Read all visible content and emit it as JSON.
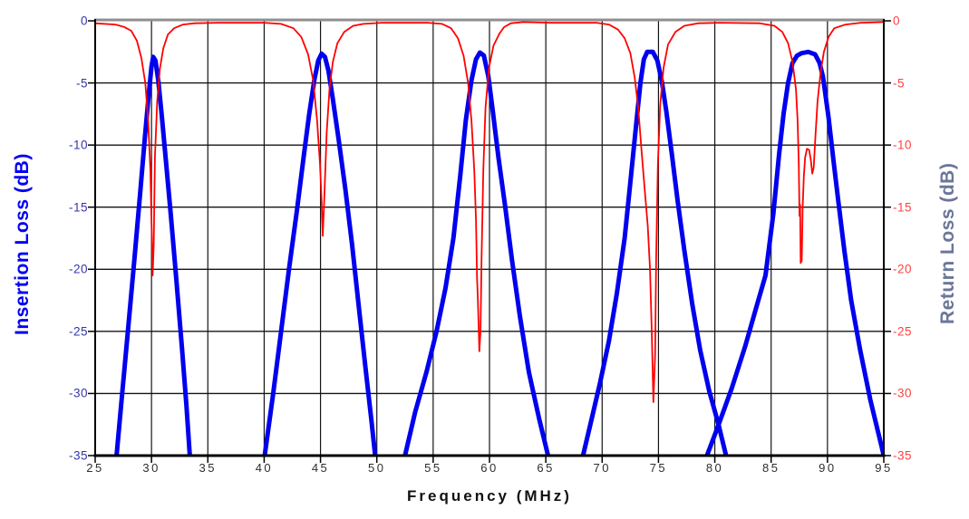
{
  "chart_data": {
    "type": "line",
    "title": "",
    "xlabel": "Frequency (MHz)",
    "ylabel_left": "Insertion Loss (dB)",
    "ylabel_right": "Return Loss (dB)",
    "x_range": [
      25,
      95
    ],
    "x_ticks": [
      25,
      30,
      35,
      40,
      45,
      50,
      55,
      60,
      65,
      70,
      75,
      80,
      85,
      90,
      95
    ],
    "y_range": [
      -35,
      0
    ],
    "y_ticks": [
      0,
      -5,
      -10,
      -15,
      -20,
      -25,
      -30,
      -35
    ],
    "grid": true,
    "legend_position": "none",
    "colors": {
      "insertion_loss": "#0000ee",
      "return_loss": "#ff0000",
      "left_tick_labels": "#3535a8",
      "right_tick_labels": "#ff4040",
      "left_title": "#0000f5",
      "right_title": "#6b7699",
      "x_labels": "#2e2e2e",
      "x_title": "#111111",
      "grid": "#141414",
      "axis_border": "#000000",
      "top_border": "#8f8f8f",
      "background": "#ffffff"
    },
    "passbands": [
      {
        "center_mhz": 30.1,
        "insertion_loss_peak_db": -2.9,
        "return_loss_min_db": -20.5
      },
      {
        "center_mhz": 45.2,
        "insertion_loss_peak_db": -2.7,
        "return_loss_min_db": -17.3
      },
      {
        "center_mhz": 59.2,
        "insertion_loss_peak_db": -2.6,
        "return_loss_min_db": -26.6
      },
      {
        "center_mhz": 74.2,
        "insertion_loss_peak_db": -2.5,
        "return_loss_min_db": -30.7
      },
      {
        "center_mhz": 88.0,
        "insertion_loss_peak_db": -2.5,
        "return_loss_min_db": -19.5
      }
    ],
    "series": [
      {
        "name": "Insertion Loss",
        "axis": "left",
        "color": "#0000ee",
        "stroke_width": 5,
        "segments": [
          [
            [
              26.9,
              -35
            ],
            [
              27.4,
              -30
            ],
            [
              27.95,
              -24.5
            ],
            [
              28.5,
              -19
            ],
            [
              29.0,
              -13.8
            ],
            [
              29.4,
              -9.5
            ],
            [
              29.75,
              -6
            ],
            [
              30.0,
              -3.7
            ],
            [
              30.15,
              -2.9
            ],
            [
              30.35,
              -3.2
            ],
            [
              30.6,
              -4.8
            ],
            [
              30.9,
              -7.5
            ],
            [
              31.25,
              -11
            ],
            [
              31.7,
              -15.5
            ],
            [
              32.2,
              -20.8
            ],
            [
              32.7,
              -26.3
            ],
            [
              33.1,
              -31
            ],
            [
              33.4,
              -35
            ]
          ],
          [
            [
              40.05,
              -35
            ],
            [
              40.8,
              -30
            ],
            [
              41.5,
              -25
            ],
            [
              42.2,
              -20
            ],
            [
              42.9,
              -15.3
            ],
            [
              43.5,
              -11
            ],
            [
              44.0,
              -7.5
            ],
            [
              44.45,
              -4.8
            ],
            [
              44.8,
              -3.2
            ],
            [
              45.1,
              -2.65
            ],
            [
              45.4,
              -2.9
            ],
            [
              45.7,
              -4
            ],
            [
              46.1,
              -6.3
            ],
            [
              46.6,
              -9.5
            ],
            [
              47.2,
              -13.5
            ],
            [
              47.8,
              -18
            ],
            [
              48.4,
              -23
            ],
            [
              49.0,
              -28
            ],
            [
              49.5,
              -32
            ],
            [
              49.85,
              -35
            ]
          ],
          [
            [
              52.5,
              -35
            ],
            [
              53.4,
              -31.5
            ],
            [
              54.4,
              -28.3
            ],
            [
              55.3,
              -25
            ],
            [
              56.1,
              -21.5
            ],
            [
              56.8,
              -17.5
            ],
            [
              57.4,
              -12.5
            ],
            [
              57.9,
              -8
            ],
            [
              58.4,
              -4.8
            ],
            [
              58.8,
              -3.1
            ],
            [
              59.15,
              -2.55
            ],
            [
              59.5,
              -2.8
            ],
            [
              59.9,
              -4.5
            ],
            [
              60.3,
              -7.3
            ],
            [
              60.8,
              -11
            ],
            [
              61.4,
              -15
            ],
            [
              62.0,
              -19.3
            ],
            [
              62.7,
              -23.8
            ],
            [
              63.5,
              -28.3
            ],
            [
              64.4,
              -32
            ],
            [
              65.2,
              -35
            ]
          ],
          [
            [
              68.3,
              -35
            ],
            [
              69.0,
              -32.3
            ],
            [
              69.8,
              -29.2
            ],
            [
              70.6,
              -25.8
            ],
            [
              71.3,
              -22
            ],
            [
              72.0,
              -17.5
            ],
            [
              72.5,
              -13
            ],
            [
              73.0,
              -8.5
            ],
            [
              73.4,
              -5
            ],
            [
              73.7,
              -3.1
            ],
            [
              74.0,
              -2.5
            ],
            [
              74.5,
              -2.5
            ],
            [
              74.9,
              -3.2
            ],
            [
              75.3,
              -4.9
            ],
            [
              75.7,
              -7.3
            ],
            [
              76.2,
              -10.8
            ],
            [
              76.7,
              -14.5
            ],
            [
              77.3,
              -18.5
            ],
            [
              78.0,
              -22.8
            ],
            [
              78.7,
              -26.5
            ],
            [
              79.5,
              -29.8
            ],
            [
              80.3,
              -32.4
            ],
            [
              81.0,
              -35
            ]
          ],
          [
            [
              79.3,
              -35
            ],
            [
              80.3,
              -32.6
            ],
            [
              81.5,
              -29.6
            ],
            [
              82.7,
              -26.2
            ],
            [
              83.7,
              -23
            ],
            [
              84.5,
              -20.5
            ],
            [
              85.2,
              -15.5
            ],
            [
              85.7,
              -10.8
            ],
            [
              86.1,
              -7.5
            ],
            [
              86.5,
              -5
            ],
            [
              86.9,
              -3.4
            ],
            [
              87.3,
              -2.8
            ],
            [
              87.7,
              -2.6
            ],
            [
              88.3,
              -2.5
            ],
            [
              88.9,
              -2.7
            ],
            [
              89.3,
              -3.4
            ],
            [
              89.6,
              -4.5
            ],
            [
              90.1,
              -7.8
            ],
            [
              90.5,
              -11
            ],
            [
              91.0,
              -14.8
            ],
            [
              91.5,
              -18.5
            ],
            [
              92.1,
              -22.5
            ],
            [
              92.9,
              -26.5
            ],
            [
              93.8,
              -30.5
            ],
            [
              95.0,
              -35
            ]
          ]
        ]
      },
      {
        "name": "Return Loss",
        "axis": "right",
        "color": "#ff0000",
        "stroke_width": 1.8,
        "segments": [
          [
            [
              25,
              -0.2
            ],
            [
              26.8,
              -0.3
            ],
            [
              27.6,
              -0.5
            ],
            [
              28.2,
              -0.8
            ],
            [
              28.7,
              -1.6
            ],
            [
              29.1,
              -3
            ],
            [
              29.45,
              -5
            ],
            [
              29.7,
              -8
            ],
            [
              29.9,
              -12
            ],
            [
              30.0,
              -16
            ],
            [
              30.1,
              -20.5
            ],
            [
              30.2,
              -18
            ],
            [
              30.3,
              -11
            ],
            [
              30.5,
              -6.5
            ],
            [
              30.75,
              -3.8
            ],
            [
              31.05,
              -2.2
            ],
            [
              31.45,
              -1.1
            ],
            [
              32.0,
              -0.6
            ],
            [
              32.8,
              -0.3
            ],
            [
              33.8,
              -0.2
            ],
            [
              36,
              -0.15
            ],
            [
              40,
              -0.15
            ],
            [
              41.5,
              -0.25
            ],
            [
              42.6,
              -0.6
            ],
            [
              43.3,
              -1.3
            ],
            [
              43.9,
              -2.7
            ],
            [
              44.35,
              -4.8
            ],
            [
              44.7,
              -8
            ],
            [
              44.95,
              -11.5
            ],
            [
              45.1,
              -14.5
            ],
            [
              45.2,
              -17.3
            ],
            [
              45.35,
              -14
            ],
            [
              45.55,
              -9
            ],
            [
              45.8,
              -5.5
            ],
            [
              46.1,
              -3.3
            ],
            [
              46.5,
              -1.8
            ],
            [
              47.1,
              -0.9
            ],
            [
              47.9,
              -0.4
            ],
            [
              48.8,
              -0.25
            ],
            [
              50.5,
              -0.15
            ],
            [
              54.5,
              -0.15
            ],
            [
              55.8,
              -0.25
            ],
            [
              56.6,
              -0.6
            ],
            [
              57.2,
              -1.4
            ],
            [
              57.7,
              -2.8
            ],
            [
              58.1,
              -5
            ],
            [
              58.4,
              -8
            ],
            [
              58.65,
              -12
            ],
            [
              58.8,
              -16
            ],
            [
              58.9,
              -20.8
            ],
            [
              58.95,
              -22
            ],
            [
              59.1,
              -26.6
            ],
            [
              59.2,
              -25
            ],
            [
              59.3,
              -19
            ],
            [
              59.45,
              -12
            ],
            [
              59.65,
              -7
            ],
            [
              59.95,
              -3.8
            ],
            [
              60.35,
              -2
            ],
            [
              60.9,
              -1
            ],
            [
              61.3,
              -0.5
            ],
            [
              61.9,
              -0.2
            ],
            [
              63,
              -0.1
            ],
            [
              65.5,
              -0.15
            ],
            [
              69.5,
              -0.15
            ],
            [
              70.6,
              -0.3
            ],
            [
              71.4,
              -0.7
            ],
            [
              72.0,
              -1.4
            ],
            [
              72.5,
              -2.6
            ],
            [
              72.9,
              -4.6
            ],
            [
              73.2,
              -7
            ],
            [
              73.5,
              -10.5
            ],
            [
              73.8,
              -13.8
            ],
            [
              74.05,
              -16.5
            ],
            [
              74.25,
              -20
            ],
            [
              74.4,
              -25
            ],
            [
              74.55,
              -30.7
            ],
            [
              74.7,
              -27
            ],
            [
              74.8,
              -19
            ],
            [
              74.95,
              -11.5
            ],
            [
              75.15,
              -6.8
            ],
            [
              75.45,
              -3.8
            ],
            [
              75.85,
              -1.9
            ],
            [
              76.5,
              -0.9
            ],
            [
              77.3,
              -0.4
            ],
            [
              78.5,
              -0.2
            ],
            [
              80.5,
              -0.15
            ],
            [
              84.0,
              -0.2
            ],
            [
              85.3,
              -0.4
            ],
            [
              86.0,
              -0.9
            ],
            [
              86.5,
              -1.8
            ],
            [
              86.9,
              -3.3
            ],
            [
              87.2,
              -5.5
            ],
            [
              87.35,
              -8
            ],
            [
              87.45,
              -11.5
            ],
            [
              87.52,
              -15.7
            ],
            [
              87.57,
              -14.8
            ],
            [
              87.62,
              -19.5
            ],
            [
              87.72,
              -19.3
            ],
            [
              87.8,
              -15
            ],
            [
              87.9,
              -12.5
            ],
            [
              88.02,
              -11
            ],
            [
              88.18,
              -10.3
            ],
            [
              88.38,
              -10.4
            ],
            [
              88.52,
              -11.2
            ],
            [
              88.65,
              -12.3
            ],
            [
              88.78,
              -11.8
            ],
            [
              88.92,
              -9.5
            ],
            [
              89.12,
              -6.5
            ],
            [
              89.38,
              -4.2
            ],
            [
              89.68,
              -2.5
            ],
            [
              90.1,
              -1.3
            ],
            [
              90.6,
              -0.6
            ],
            [
              91.6,
              -0.3
            ],
            [
              93.0,
              -0.15
            ],
            [
              95.0,
              -0.1
            ]
          ]
        ]
      }
    ]
  }
}
